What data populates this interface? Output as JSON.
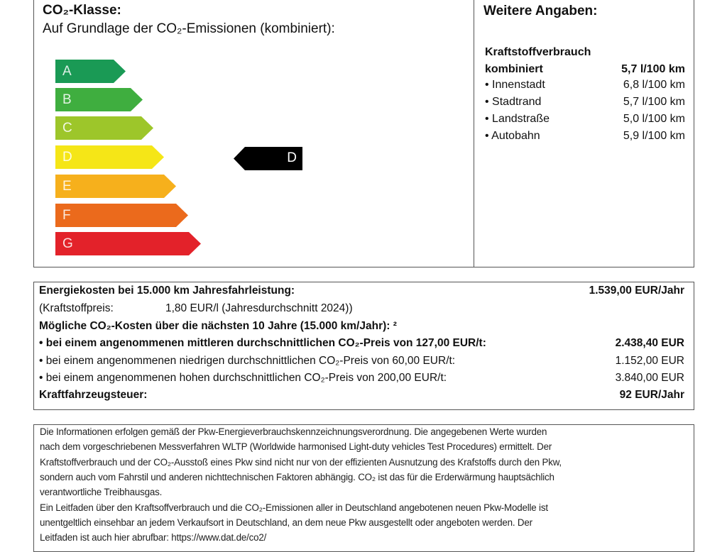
{
  "co2_class": {
    "title": "CO₂-Klasse:",
    "subtitle": "Auf Grundlage der CO₂-Emissionen (kombiniert):",
    "classes": [
      {
        "label": "A",
        "color": "#1a9a55"
      },
      {
        "label": "B",
        "color": "#3fae3f"
      },
      {
        "label": "C",
        "color": "#9dc62a"
      },
      {
        "label": "D",
        "color": "#f5e617"
      },
      {
        "label": "E",
        "color": "#f6b01c"
      },
      {
        "label": "F",
        "color": "#eb6a1c"
      },
      {
        "label": "G",
        "color": "#e3222a"
      }
    ],
    "current_class": "D"
  },
  "further": {
    "title": "Weitere Angaben:",
    "heading": "Kraftstoffverbrauch",
    "combined_label": "kombiniert",
    "combined_value": "5,7 l/100 km",
    "items": [
      {
        "label": "• Innenstadt",
        "value": "6,8 l/100 km"
      },
      {
        "label": "• Stadtrand",
        "value": "5,7 l/100 km"
      },
      {
        "label": "• Landstraße",
        "value": "5,0 l/100 km"
      },
      {
        "label": "• Autobahn",
        "value": "5,9 l/100 km"
      }
    ]
  },
  "costs": {
    "energy_label": "Energiekosten bei 15.000 km Jahresfahrleistung:",
    "energy_value": "1.539,00 EUR/Jahr",
    "fuel_price_label": "(Kraftstoffpreis:",
    "fuel_price_value": "1,80 EUR/l (Jahresdurchschnitt 2024))",
    "co2_heading": "Mögliche CO₂-Kosten über die nächsten 10 Jahre (15.000 km/Jahr): ²",
    "scenarios": [
      {
        "label": "• bei einem angenommenen mittleren durchschnittlichen CO₂-Preis von 127,00 EUR/t:",
        "value": "2.438,40 EUR"
      },
      {
        "label": "• bei einem angenommenen niedrigen durchschnittlichen CO₂-Preis von 60,00 EUR/t:",
        "value": "1.152,00 EUR"
      },
      {
        "label": "• bei einem angenommenen hohen durchschnittlichen CO₂-Preis von 200,00 EUR/t:",
        "value": "3.840,00 EUR"
      }
    ],
    "tax_label": "Kraftfahrzeugsteuer:",
    "tax_value": "92 EUR/Jahr"
  },
  "footer": {
    "lines": [
      "Die Informationen erfolgen gemäß der Pkw-Energieverbrauchskennzeichnungsverordnung. Die angegebenen Werte wurden",
      "nach dem vorgeschriebenen Messverfahren WLTP (Worldwide harmonised Light-duty vehicles Test Procedures) ermittelt. Der",
      "Kraftstoffverbrauch und der CO₂-Ausstoß eines Pkw sind nicht nur von der effizienten Ausnutzung des Krafstoffs durch den Pkw,",
      "sondern auch vom Fahrstil und anderen nichttechnischen Faktoren abhängig. CO₂ ist das für die Erderwärmung hauptsächlich",
      "verantwortliche Treibhausgas.",
      "Ein Leitfaden über den Kraftsoffverbrauch und die CO₂-Emissionen aller in Deutschland angebotenen neuen Pkw-Modelle ist",
      "unentgeltlich einsehbar an jedem Verkaufsort in Deutschland, an dem neue Pkw ausgestellt oder angeboten werden. Der",
      "Leitfaden ist auch hier abrufbar: https://www.dat.de/co2/"
    ]
  }
}
